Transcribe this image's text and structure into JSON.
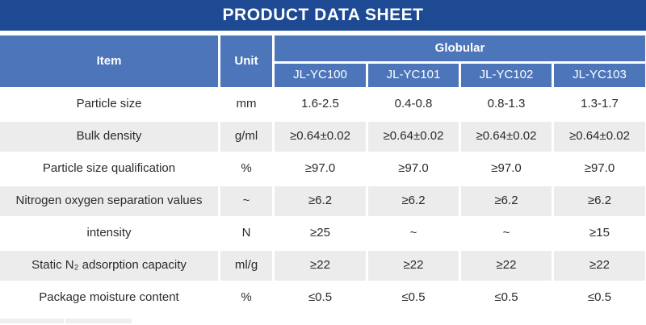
{
  "title_bar": {
    "title": "PRODUCT DATA SHEET"
  },
  "colors": {
    "title_bar_bg": "#1E4A94",
    "table_header_bg": "#4C75BA",
    "alt_row_bg": "#ECECEC",
    "header_text": "#FFFFFF",
    "data_text": "#2B2B2B"
  },
  "table": {
    "header": {
      "item": "Item",
      "unit": "Unit",
      "group": "Globular",
      "models": [
        "JL-YC100",
        "JL-YC101",
        "JL-YC102",
        "JL-YC103"
      ]
    },
    "rows": [
      {
        "item": "Particle size",
        "unit": "mm",
        "values": [
          "1.6-2.5",
          "0.4-0.8",
          "0.8-1.3",
          "1.3-1.7"
        ]
      },
      {
        "item": "Bulk density",
        "unit": "g/ml",
        "values": [
          "≥0.64±0.02",
          "≥0.64±0.02",
          "≥0.64±0.02",
          "≥0.64±0.02"
        ]
      },
      {
        "item": "Particle size qualification",
        "unit": "%",
        "values": [
          "≥97.0",
          "≥97.0",
          "≥97.0",
          "≥97.0"
        ]
      },
      {
        "item": "Nitrogen oxygen separation values",
        "unit": "~",
        "values": [
          "≥6.2",
          "≥6.2",
          "≥6.2",
          "≥6.2"
        ]
      },
      {
        "item": "intensity",
        "unit": "N",
        "values": [
          "≥25",
          "~",
          "~",
          "≥15"
        ]
      },
      {
        "item": "Static N₂ adsorption capacity",
        "unit": "ml/g",
        "values": [
          "≥22",
          "≥22",
          "≥22",
          "≥22"
        ]
      },
      {
        "item": "Package moisture content",
        "unit": "%",
        "values": [
          "≤0.5",
          "≤0.5",
          "≤0.5",
          "≤0.5"
        ]
      }
    ]
  }
}
